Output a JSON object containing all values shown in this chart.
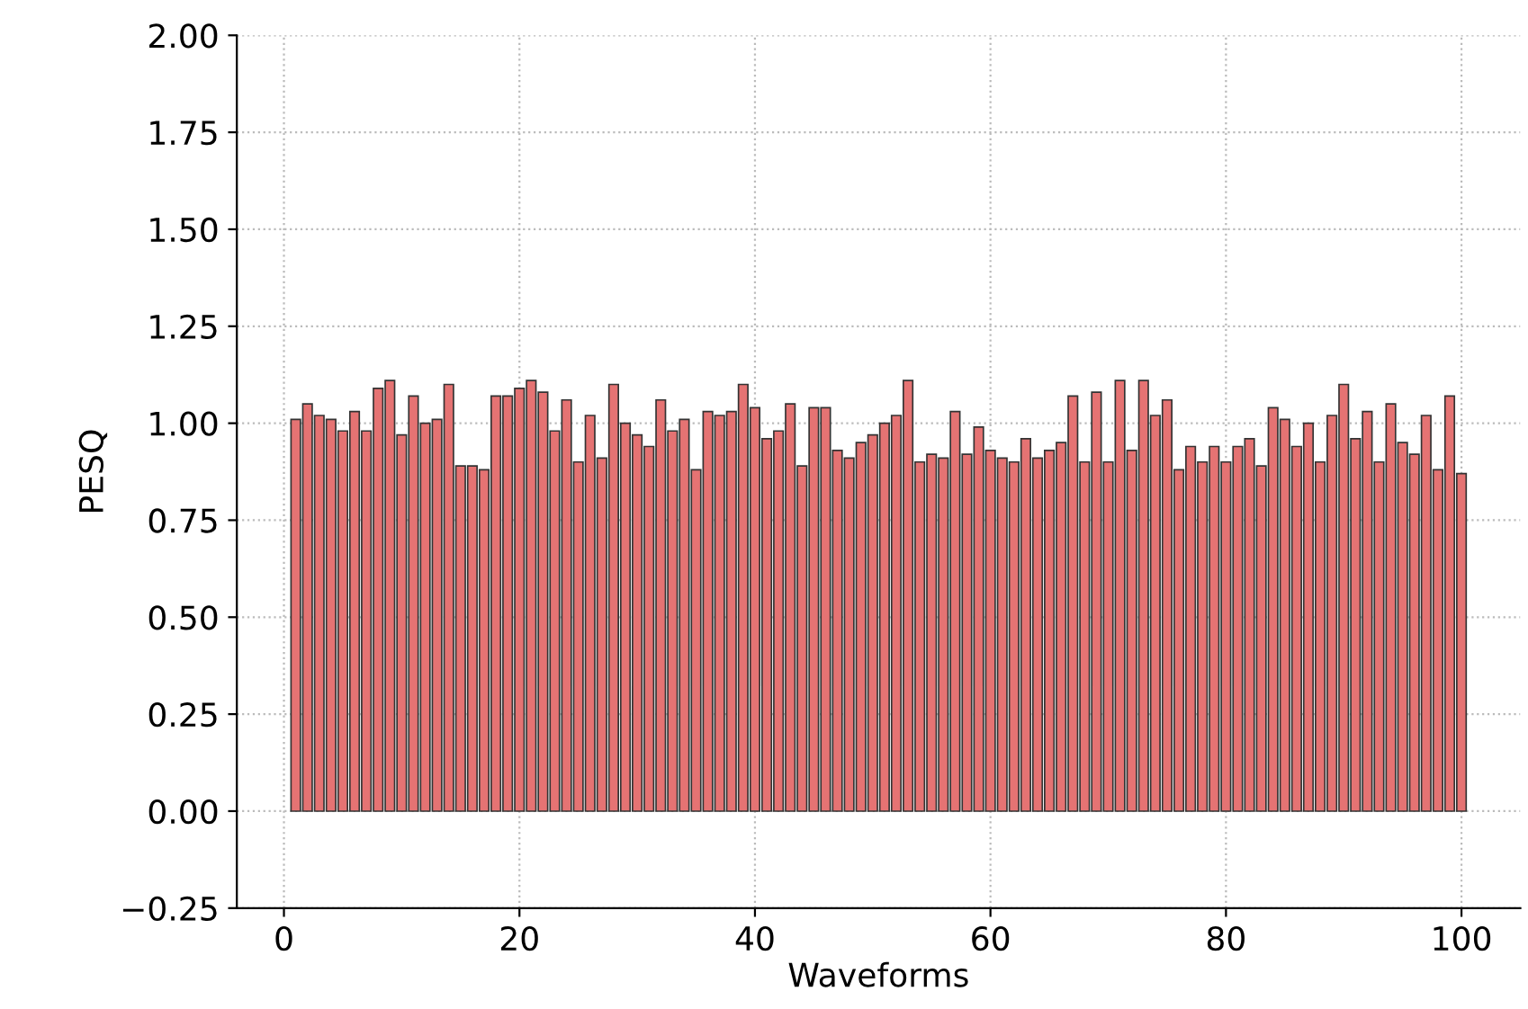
{
  "chart_data": {
    "type": "bar",
    "xlabel": "Waveforms",
    "ylabel": "PESQ",
    "x": [
      1,
      2,
      3,
      4,
      5,
      6,
      7,
      8,
      9,
      10,
      11,
      12,
      13,
      14,
      15,
      16,
      17,
      18,
      19,
      20,
      21,
      22,
      23,
      24,
      25,
      26,
      27,
      28,
      29,
      30,
      31,
      32,
      33,
      34,
      35,
      36,
      37,
      38,
      39,
      40,
      41,
      42,
      43,
      44,
      45,
      46,
      47,
      48,
      49,
      50,
      51,
      52,
      53,
      54,
      55,
      56,
      57,
      58,
      59,
      60,
      61,
      62,
      63,
      64,
      65,
      66,
      67,
      68,
      69,
      70,
      71,
      72,
      73,
      74,
      75,
      76,
      77,
      78,
      79,
      80,
      81,
      82,
      83,
      84,
      85,
      86,
      87,
      88,
      89,
      90,
      91,
      92,
      93,
      94,
      95,
      96,
      97,
      98,
      99,
      100
    ],
    "values": [
      1.01,
      1.05,
      1.02,
      1.01,
      0.98,
      1.03,
      0.98,
      1.09,
      1.11,
      0.97,
      1.07,
      1.0,
      1.01,
      1.1,
      0.89,
      0.89,
      0.88,
      1.07,
      1.07,
      1.09,
      1.11,
      1.08,
      0.98,
      1.06,
      0.9,
      1.02,
      0.91,
      1.1,
      1.0,
      0.97,
      0.94,
      1.06,
      0.98,
      1.01,
      0.88,
      1.03,
      1.02,
      1.03,
      1.1,
      1.04,
      0.96,
      0.98,
      1.05,
      0.89,
      1.04,
      1.04,
      0.93,
      0.91,
      0.95,
      0.97,
      1.0,
      1.02,
      1.11,
      0.9,
      0.92,
      0.91,
      1.03,
      0.92,
      0.99,
      0.93,
      0.91,
      0.9,
      0.96,
      0.91,
      0.93,
      0.95,
      1.07,
      0.9,
      1.08,
      0.9,
      1.11,
      0.93,
      1.11,
      1.02,
      1.06,
      0.88,
      0.94,
      0.9,
      0.94,
      0.9,
      0.94,
      0.96,
      0.89,
      1.04,
      1.01,
      0.94,
      1.0,
      0.9,
      1.02,
      1.1,
      0.96,
      1.03,
      0.9,
      1.05,
      0.95,
      0.92,
      1.02,
      0.88,
      1.07,
      0.87
    ],
    "color": "#e57373",
    "xlim": [
      -4,
      105
    ],
    "ylim": [
      -0.25,
      2.0
    ],
    "xticks": [
      0,
      20,
      40,
      60,
      80,
      100
    ],
    "yticks": [
      {
        "value": -0.25,
        "label": "−0.25"
      },
      {
        "value": 0,
        "label": "0.00"
      },
      {
        "value": 0.25,
        "label": "0.25"
      },
      {
        "value": 0.5,
        "label": "0.50"
      },
      {
        "value": 0.75,
        "label": "0.75"
      },
      {
        "value": 1.0,
        "label": "1.00"
      },
      {
        "value": 1.25,
        "label": "1.25"
      },
      {
        "value": 1.5,
        "label": "1.50"
      },
      {
        "value": 1.75,
        "label": "1.75"
      },
      {
        "value": 2.0,
        "label": "2.00"
      }
    ],
    "grid": true
  }
}
